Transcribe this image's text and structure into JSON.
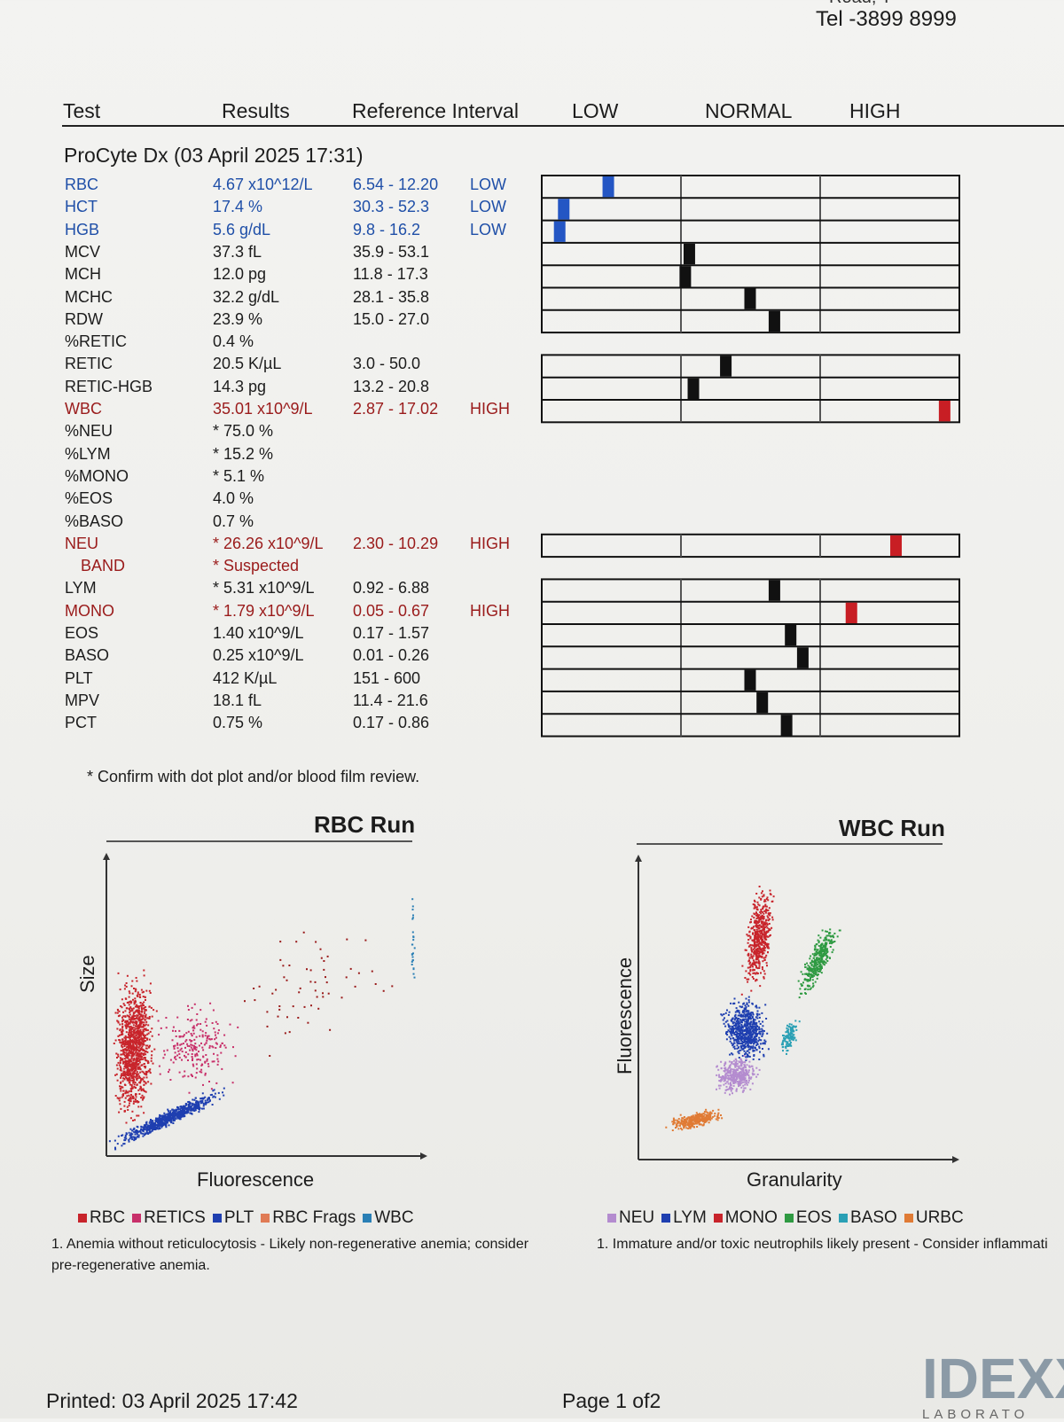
{
  "header": {
    "top_fragment": "Road, T",
    "tel": "Tel -3899 8999"
  },
  "columns": {
    "test": "Test",
    "results": "Results",
    "reference": "Reference Interval",
    "low": "LOW",
    "normal": "NORMAL",
    "high": "HIGH"
  },
  "instrument": "ProCyte Dx (03 April 2025 17:31)",
  "rows": [
    {
      "test": "RBC",
      "result": "4.67 x10^12/L",
      "ref": "6.54 - 12.20",
      "flag": "LOW",
      "status": "low",
      "bar_level": 0.15
    },
    {
      "test": "HCT",
      "result": "17.4 %",
      "ref": "30.3 - 52.3",
      "flag": "LOW",
      "status": "low",
      "bar_level": 0.04
    },
    {
      "test": "HGB",
      "result": "5.6 g/dL",
      "ref": "9.8 - 16.2",
      "flag": "LOW",
      "status": "low",
      "bar_level": 0.03
    },
    {
      "test": "MCV",
      "result": "37.3 fL",
      "ref": "35.9 - 53.1",
      "flag": "",
      "status": "normal",
      "bar_level": 0.35
    },
    {
      "test": "MCH",
      "result": "12.0 pg",
      "ref": "11.8 - 17.3",
      "flag": "",
      "status": "normal",
      "bar_level": 0.34
    },
    {
      "test": "MCHC",
      "result": "32.2 g/dL",
      "ref": "28.1 - 35.8",
      "flag": "",
      "status": "normal",
      "bar_level": 0.5
    },
    {
      "test": "RDW",
      "result": "23.9 %",
      "ref": "15.0 - 27.0",
      "flag": "",
      "status": "normal",
      "bar_level": 0.56
    },
    {
      "test": "%RETIC",
      "result": "0.4 %",
      "ref": "",
      "flag": "",
      "status": "normal",
      "bar_level": null
    },
    {
      "test": "RETIC",
      "result": "20.5 K/µL",
      "ref": "3.0 - 50.0",
      "flag": "",
      "status": "normal",
      "bar_level": 0.44
    },
    {
      "test": "RETIC-HGB",
      "result": "14.3 pg",
      "ref": "13.2 - 20.8",
      "flag": "",
      "status": "normal",
      "bar_level": 0.36
    },
    {
      "test": "WBC",
      "result": "35.01 x10^9/L",
      "ref": "2.87 - 17.02",
      "flag": "HIGH",
      "status": "high",
      "bar_level": 0.98
    },
    {
      "test": "%NEU",
      "result": "* 75.0 %",
      "ref": "",
      "flag": "",
      "status": "normal",
      "bar_level": null
    },
    {
      "test": "%LYM",
      "result": "* 15.2 %",
      "ref": "",
      "flag": "",
      "status": "normal",
      "bar_level": null
    },
    {
      "test": "%MONO",
      "result": "* 5.1 %",
      "ref": "",
      "flag": "",
      "status": "normal",
      "bar_level": null
    },
    {
      "test": "%EOS",
      "result": "4.0 %",
      "ref": "",
      "flag": "",
      "status": "normal",
      "bar_level": null
    },
    {
      "test": "%BASO",
      "result": "0.7 %",
      "ref": "",
      "flag": "",
      "status": "normal",
      "bar_level": null
    },
    {
      "test": "NEU",
      "result": "* 26.26 x10^9/L",
      "ref": "2.30 - 10.29",
      "flag": "HIGH",
      "status": "high",
      "bar_level": 0.86
    },
    {
      "test": "BAND",
      "result": "* Suspected",
      "ref": "",
      "flag": "",
      "status": "high",
      "bar_level": null
    },
    {
      "test": "LYM",
      "result": "* 5.31 x10^9/L",
      "ref": "0.92 - 6.88",
      "flag": "",
      "status": "normal",
      "bar_level": 0.56
    },
    {
      "test": "MONO",
      "result": "* 1.79 x10^9/L",
      "ref": "0.05 - 0.67",
      "flag": "HIGH",
      "status": "high",
      "bar_level": 0.75
    },
    {
      "test": "EOS",
      "result": "1.40 x10^9/L",
      "ref": "0.17 - 1.57",
      "flag": "",
      "status": "normal",
      "bar_level": 0.6
    },
    {
      "test": "BASO",
      "result": "0.25 x10^9/L",
      "ref": "0.01 - 0.26",
      "flag": "",
      "status": "normal",
      "bar_level": 0.63
    },
    {
      "test": "PLT",
      "result": "412 K/µL",
      "ref": "151 - 600",
      "flag": "",
      "status": "normal",
      "bar_level": 0.5
    },
    {
      "test": "MPV",
      "result": "18.1 fL",
      "ref": "11.4 - 21.6",
      "flag": "",
      "status": "normal",
      "bar_level": 0.53
    },
    {
      "test": "PCT",
      "result": "0.75 %",
      "ref": "0.17 - 0.86",
      "flag": "",
      "status": "normal",
      "bar_level": 0.59
    }
  ],
  "confirm_note": "* Confirm with dot plot and/or blood film review.",
  "rbc_run": {
    "title": "RBC Run",
    "xlabel": "Fluorescence",
    "ylabel": "Size",
    "legend": [
      {
        "label": "RBC",
        "color": "#c8242b"
      },
      {
        "label": "RETICS",
        "color": "#c8306a"
      },
      {
        "label": "PLT",
        "color": "#1f3fb0"
      },
      {
        "label": "RBC Frags",
        "color": "#e07b55"
      },
      {
        "label": "WBC",
        "color": "#2a7fb5"
      }
    ],
    "note": "1. Anemia without reticulocytosis - Likely non-regenerative anemia; consider pre-regenerative anemia."
  },
  "wbc_run": {
    "title": "WBC Run",
    "xlabel": "Granularity",
    "ylabel": "Fluorescence",
    "legend": [
      {
        "label": "NEU",
        "color": "#b48ccf"
      },
      {
        "label": "LYM",
        "color": "#1f3fb0"
      },
      {
        "label": "MONO",
        "color": "#c8242b"
      },
      {
        "label": "EOS",
        "color": "#2f9a42"
      },
      {
        "label": "BASO",
        "color": "#2aa0b5"
      },
      {
        "label": "URBC",
        "color": "#e07b35"
      }
    ],
    "note": "1. Immature and/or toxic neutrophils likely present - Consider inflammati"
  },
  "footer": {
    "printed": "Printed: 03 April 2025 17:42",
    "page": "Page 1 of2"
  },
  "logo": {
    "text": "IDEXX",
    "sub": "LABORATO"
  },
  "colors": {
    "low": "#1f4fa8",
    "high": "#9a1b1b",
    "marker_low": "#2456c4",
    "marker_normal": "#111111",
    "marker_high": "#c81e24"
  }
}
